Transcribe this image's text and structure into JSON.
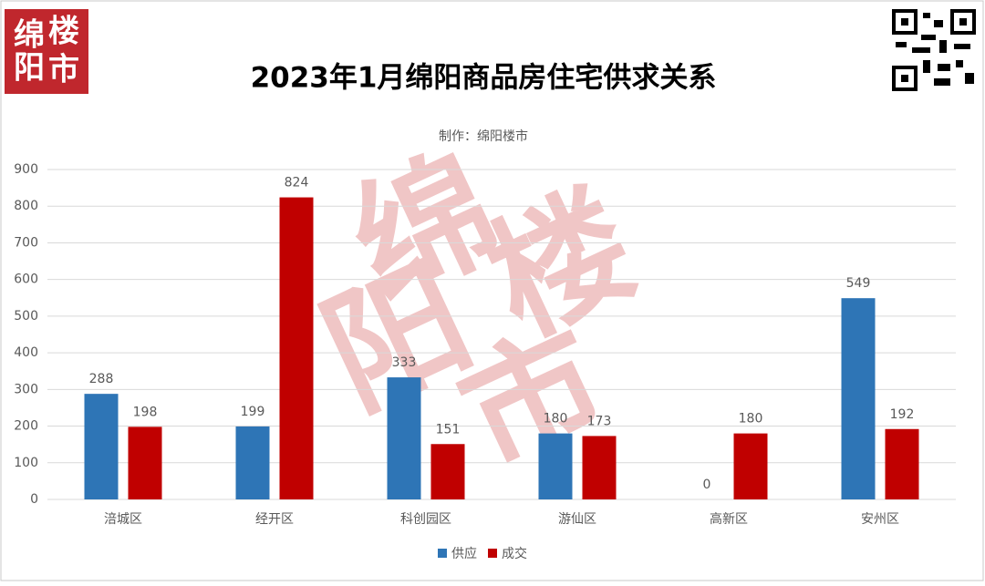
{
  "chart_data": {
    "type": "bar",
    "title": "2023年1月绵阳商品房住宅供求关系",
    "subtitle": "制作：绵阳楼市",
    "logo": [
      "绵",
      "楼",
      "阳",
      "市"
    ],
    "watermark": [
      "绵",
      "楼",
      "阳",
      "市"
    ],
    "categories": [
      "涪城区",
      "经开区",
      "科创园区",
      "游仙区",
      "高新区",
      "安州区"
    ],
    "series": [
      {
        "name": "供应",
        "color": "#2e75b6",
        "values": [
          288,
          199,
          333,
          180,
          0,
          549
        ]
      },
      {
        "name": "成交",
        "color": "#c00000",
        "values": [
          198,
          824,
          151,
          173,
          180,
          192
        ]
      }
    ],
    "ylim": [
      0,
      900
    ],
    "yticks": [
      0,
      100,
      200,
      300,
      400,
      500,
      600,
      700,
      800,
      900
    ],
    "grid": true,
    "legend": "bottom"
  }
}
